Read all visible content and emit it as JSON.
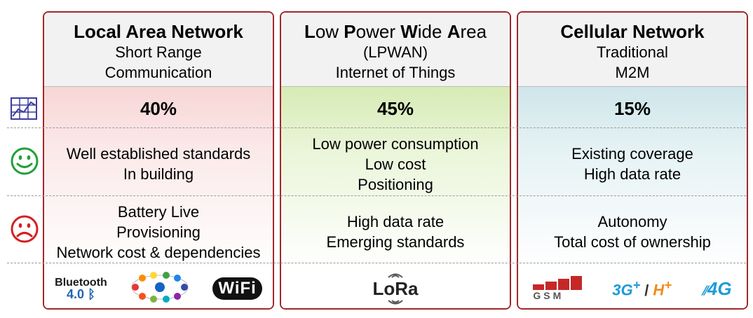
{
  "columns": [
    {
      "title": "Local Area Network",
      "subtitle": [
        "Short Range",
        "Communication"
      ],
      "share": "40%",
      "pros": [
        "Well established standards",
        "In building"
      ],
      "cons": [
        "Battery Live",
        "Provisioning",
        "Network cost & dependencies"
      ],
      "logos": {
        "bluetooth": "Bluetooth",
        "bluetooth_version": "4.0",
        "wifi": "WiFi"
      }
    },
    {
      "title_parts": [
        [
          "L",
          "ow "
        ],
        [
          "P",
          "ower "
        ],
        [
          "W",
          "ide "
        ],
        [
          "A",
          "rea"
        ]
      ],
      "subtitle": [
        "(LPWAN)",
        "Internet of Things"
      ],
      "share": "45%",
      "pros": [
        "Low power consumption",
        "Low cost",
        "Positioning"
      ],
      "cons": [
        "High data rate",
        "Emerging standards"
      ],
      "logos": {
        "lora": "LoRa"
      }
    },
    {
      "title": "Cellular Network",
      "subtitle": [
        "Traditional",
        "M2M"
      ],
      "share": "15%",
      "pros": [
        "Existing coverage",
        "High data rate"
      ],
      "cons": [
        "Autonomy",
        "Total cost of ownership"
      ],
      "logos": {
        "gsm": "GSM",
        "g3": "3G",
        "g3_plus": "+",
        "separator": "/",
        "hplus": "H",
        "hplus_plus": "+",
        "g4": "4G"
      }
    }
  ],
  "row_icons": [
    "chart-icon",
    "smiley-icon",
    "frown-icon"
  ],
  "colors": {
    "border": "#a0282d",
    "lan_tint": "#f8d6d6",
    "lpwan_tint": "#d6ebb5",
    "cell_tint": "#cfe6ea",
    "smile": "#22a03a",
    "frown": "#d42020",
    "chart": "#3c3ca0"
  }
}
